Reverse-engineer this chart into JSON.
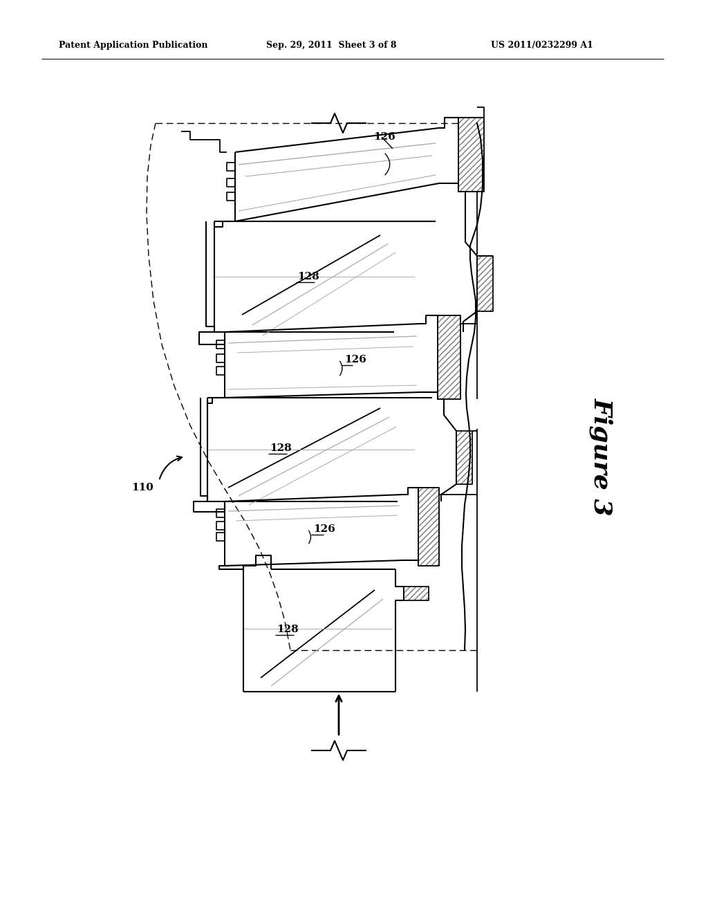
{
  "title_left": "Patent Application Publication",
  "title_center": "Sep. 29, 2011  Sheet 3 of 8",
  "title_right": "US 2011/0232299 A1",
  "figure_label": "Figure 3",
  "label_110": "110",
  "label_126": "126",
  "label_128": "128",
  "bg_color": "#ffffff",
  "line_color": "#000000",
  "gray_color": "#aaaaaa"
}
